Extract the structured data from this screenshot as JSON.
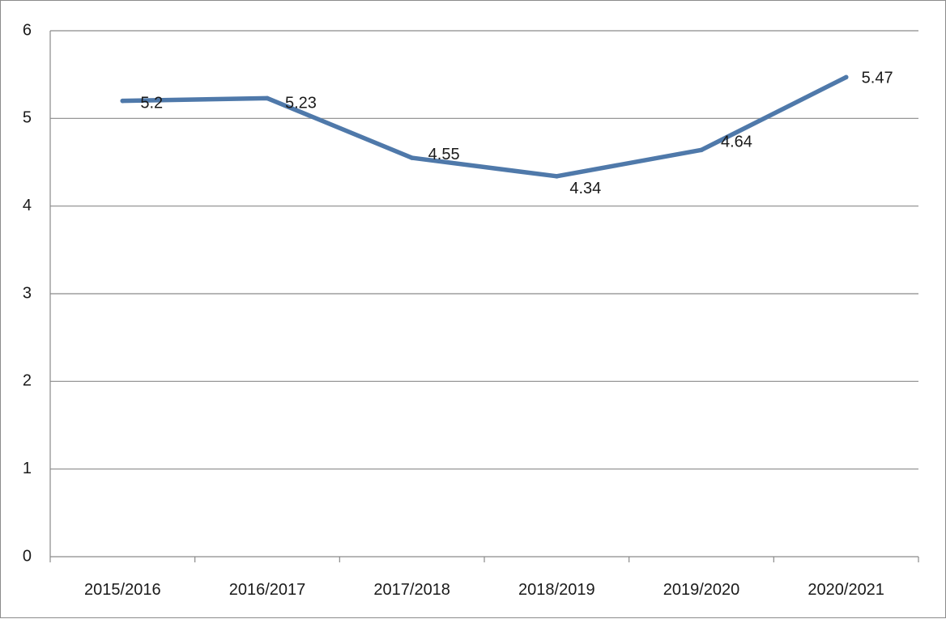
{
  "chart_data": {
    "type": "line",
    "title": "",
    "xlabel": "",
    "ylabel": "",
    "categories": [
      "2015/2016",
      "2016/2017",
      "2017/2018",
      "2018/2019",
      "2019/2020",
      "2020/2021"
    ],
    "series": [
      {
        "values": [
          5.2,
          5.23,
          4.55,
          4.34,
          4.64,
          5.47
        ],
        "color": "#4f79aa"
      }
    ],
    "data_labels": [
      "5.2",
      "5.23",
      "4.55",
      "4.34",
      "4.64",
      "5.47"
    ],
    "y_ticks": [
      "0",
      "1",
      "2",
      "3",
      "4",
      "5",
      "6"
    ],
    "ylim": [
      0,
      6
    ],
    "grid": true,
    "legend": "none"
  }
}
